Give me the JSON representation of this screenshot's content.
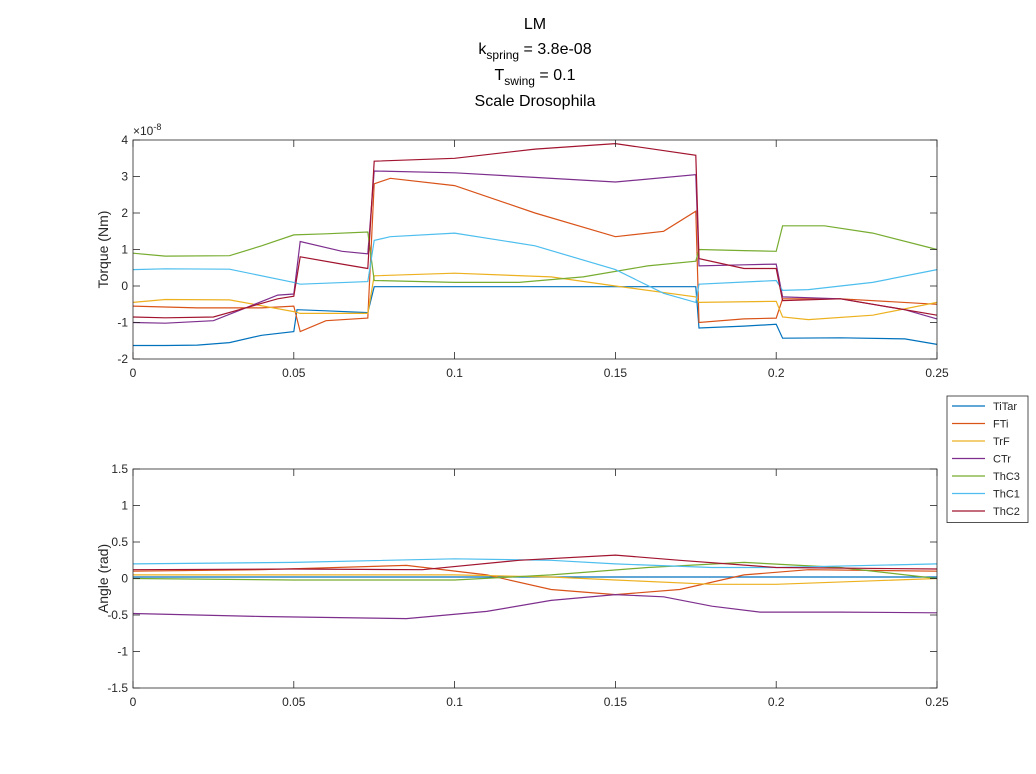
{
  "title": {
    "line1": "LM",
    "k_main": "k",
    "k_sub": "spring",
    "k_rest": " = 3.8e-08",
    "t_main": "T",
    "t_sub": "swing",
    "t_rest": " = 0.1",
    "line4": "Scale Drosophila"
  },
  "legend": [
    {
      "label": "TiTar",
      "color": "#0072BD"
    },
    {
      "label": "FTi",
      "color": "#D95319"
    },
    {
      "label": "TrF",
      "color": "#EDB120"
    },
    {
      "label": "CTr",
      "color": "#7E2F8E"
    },
    {
      "label": "ThC3",
      "color": "#77AC30"
    },
    {
      "label": "ThC1",
      "color": "#4DBEEE"
    },
    {
      "label": "ThC2",
      "color": "#A2142F"
    }
  ],
  "chart_data": [
    {
      "type": "line",
      "xlabel": "",
      "ylabel": "Torque (Nm)",
      "xlim": [
        0,
        0.25
      ],
      "ylim": [
        -2,
        4
      ],
      "y_exponent": "×10",
      "y_exponent_power": "-8",
      "xticks": [
        "0",
        "0.05",
        "0.1",
        "0.15",
        "0.2",
        "0.25"
      ],
      "yticks": [
        "-2",
        "-1",
        "0",
        "1",
        "2",
        "3",
        "4"
      ],
      "series": [
        {
          "name": "TiTar",
          "color": "#0072BD",
          "x": [
            0,
            0.01,
            0.02,
            0.03,
            0.04,
            0.05,
            0.051,
            0.06,
            0.073,
            0.075,
            0.1,
            0.15,
            0.175,
            0.176,
            0.19,
            0.2,
            0.202,
            0.22,
            0.24,
            0.25
          ],
          "y": [
            -1.63,
            -1.63,
            -1.62,
            -1.55,
            -1.35,
            -1.25,
            -0.65,
            -0.68,
            -0.73,
            -0.02,
            -0.02,
            -0.02,
            -0.02,
            -1.15,
            -1.1,
            -1.05,
            -1.43,
            -1.42,
            -1.45,
            -1.6
          ]
        },
        {
          "name": "FTi",
          "color": "#D95319",
          "x": [
            0,
            0.02,
            0.04,
            0.05,
            0.052,
            0.06,
            0.073,
            0.075,
            0.08,
            0.1,
            0.125,
            0.15,
            0.165,
            0.175,
            0.176,
            0.19,
            0.2,
            0.202,
            0.22,
            0.25
          ],
          "y": [
            -0.55,
            -0.6,
            -0.6,
            -0.55,
            -1.25,
            -0.95,
            -0.88,
            2.8,
            2.95,
            2.75,
            2.0,
            1.35,
            1.5,
            2.05,
            -1.0,
            -0.9,
            -0.88,
            -0.35,
            -0.35,
            -0.5
          ]
        },
        {
          "name": "TrF",
          "color": "#EDB120",
          "x": [
            0,
            0.01,
            0.03,
            0.05,
            0.052,
            0.073,
            0.075,
            0.1,
            0.13,
            0.15,
            0.175,
            0.176,
            0.2,
            0.202,
            0.21,
            0.23,
            0.25
          ],
          "y": [
            -0.45,
            -0.37,
            -0.38,
            -0.7,
            -0.75,
            -0.75,
            0.28,
            0.35,
            0.25,
            0.0,
            -0.3,
            -0.45,
            -0.42,
            -0.85,
            -0.92,
            -0.8,
            -0.45
          ]
        },
        {
          "name": "CTr",
          "color": "#7E2F8E",
          "x": [
            0,
            0.01,
            0.025,
            0.035,
            0.045,
            0.05,
            0.052,
            0.065,
            0.073,
            0.075,
            0.1,
            0.15,
            0.175,
            0.176,
            0.19,
            0.2,
            0.202,
            0.22,
            0.24,
            0.25
          ],
          "y": [
            -1.0,
            -1.02,
            -0.95,
            -0.6,
            -0.25,
            -0.22,
            1.22,
            0.95,
            0.88,
            3.15,
            3.1,
            2.85,
            3.05,
            0.55,
            0.58,
            0.6,
            -0.3,
            -0.35,
            -0.65,
            -0.9
          ]
        },
        {
          "name": "ThC3",
          "color": "#77AC30",
          "x": [
            0,
            0.01,
            0.03,
            0.04,
            0.05,
            0.06,
            0.073,
            0.075,
            0.1,
            0.12,
            0.14,
            0.16,
            0.175,
            0.176,
            0.19,
            0.2,
            0.202,
            0.215,
            0.23,
            0.25
          ],
          "y": [
            0.9,
            0.82,
            0.83,
            1.1,
            1.4,
            1.43,
            1.48,
            0.15,
            0.1,
            0.1,
            0.25,
            0.55,
            0.68,
            1.0,
            0.97,
            0.95,
            1.65,
            1.65,
            1.45,
            1.0
          ]
        },
        {
          "name": "ThC1",
          "color": "#4DBEEE",
          "x": [
            0,
            0.01,
            0.03,
            0.05,
            0.052,
            0.073,
            0.075,
            0.08,
            0.1,
            0.125,
            0.15,
            0.165,
            0.175,
            0.176,
            0.2,
            0.202,
            0.21,
            0.23,
            0.25
          ],
          "y": [
            0.45,
            0.47,
            0.46,
            0.1,
            0.05,
            0.12,
            1.25,
            1.35,
            1.45,
            1.1,
            0.45,
            -0.2,
            -0.45,
            0.05,
            0.15,
            -0.12,
            -0.1,
            0.1,
            0.45
          ]
        },
        {
          "name": "ThC2",
          "color": "#A2142F",
          "x": [
            0,
            0.01,
            0.025,
            0.035,
            0.045,
            0.05,
            0.052,
            0.065,
            0.073,
            0.075,
            0.1,
            0.125,
            0.15,
            0.175,
            0.176,
            0.19,
            0.2,
            0.202,
            0.22,
            0.25
          ],
          "y": [
            -0.85,
            -0.87,
            -0.85,
            -0.6,
            -0.35,
            -0.28,
            0.8,
            0.6,
            0.48,
            3.42,
            3.5,
            3.75,
            3.9,
            3.58,
            0.75,
            0.48,
            0.48,
            -0.4,
            -0.35,
            -0.8
          ]
        }
      ]
    },
    {
      "type": "line",
      "xlabel": "",
      "ylabel": "Angle (rad)",
      "xlim": [
        0,
        0.25
      ],
      "ylim": [
        -1.5,
        1.5
      ],
      "xticks": [
        "0",
        "0.05",
        "0.1",
        "0.15",
        "0.2",
        "0.25"
      ],
      "yticks": [
        "-1.5",
        "-1",
        "-0.5",
        "0",
        "0.5",
        "1",
        "1.5"
      ],
      "series": [
        {
          "name": "TiTar",
          "color": "#0072BD",
          "x": [
            0,
            0.05,
            0.1,
            0.15,
            0.2,
            0.25
          ],
          "y": [
            0.02,
            0.02,
            0.02,
            0.02,
            0.02,
            0.02
          ]
        },
        {
          "name": "FTi",
          "color": "#D95319",
          "x": [
            0,
            0.04,
            0.085,
            0.11,
            0.13,
            0.15,
            0.17,
            0.19,
            0.21,
            0.25
          ],
          "y": [
            0.1,
            0.12,
            0.18,
            0.05,
            -0.15,
            -0.22,
            -0.15,
            0.05,
            0.12,
            0.1
          ]
        },
        {
          "name": "TrF",
          "color": "#EDB120",
          "x": [
            0,
            0.05,
            0.1,
            0.13,
            0.15,
            0.18,
            0.2,
            0.25
          ],
          "y": [
            0.05,
            0.05,
            0.05,
            0.02,
            -0.02,
            -0.08,
            -0.08,
            0.0
          ]
        },
        {
          "name": "CTr",
          "color": "#7E2F8E",
          "x": [
            0,
            0.04,
            0.085,
            0.11,
            0.13,
            0.15,
            0.165,
            0.18,
            0.195,
            0.22,
            0.25
          ],
          "y": [
            -0.48,
            -0.52,
            -0.55,
            -0.45,
            -0.3,
            -0.22,
            -0.25,
            -0.38,
            -0.46,
            -0.46,
            -0.47
          ]
        },
        {
          "name": "ThC3",
          "color": "#77AC30",
          "x": [
            0,
            0.05,
            0.1,
            0.13,
            0.16,
            0.19,
            0.22,
            0.25
          ],
          "y": [
            0.0,
            -0.02,
            -0.02,
            0.05,
            0.15,
            0.22,
            0.15,
            0.0
          ]
        },
        {
          "name": "ThC1",
          "color": "#4DBEEE",
          "x": [
            0,
            0.05,
            0.1,
            0.13,
            0.15,
            0.18,
            0.2,
            0.25
          ],
          "y": [
            0.2,
            0.22,
            0.27,
            0.25,
            0.2,
            0.15,
            0.15,
            0.2
          ]
        },
        {
          "name": "ThC2",
          "color": "#A2142F",
          "x": [
            0,
            0.05,
            0.09,
            0.12,
            0.15,
            0.17,
            0.2,
            0.25
          ],
          "y": [
            0.12,
            0.13,
            0.12,
            0.25,
            0.32,
            0.25,
            0.15,
            0.13
          ]
        }
      ]
    }
  ]
}
